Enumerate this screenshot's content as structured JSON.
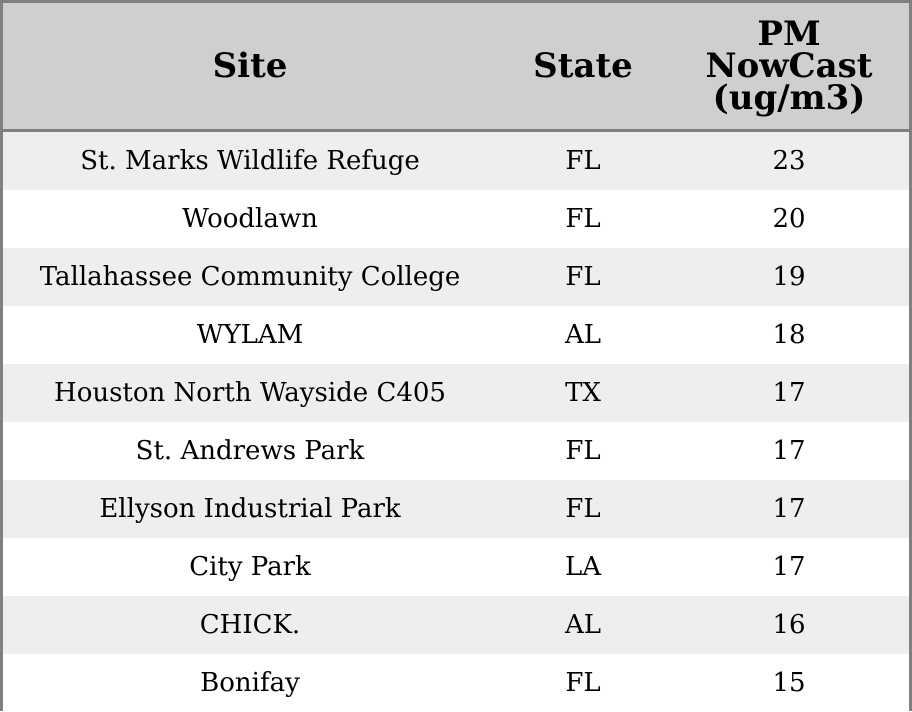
{
  "chart_data": {
    "type": "table",
    "columns": [
      "Site",
      "State",
      "PM\nNowCast\n(ug/m3)"
    ],
    "rows": [
      {
        "site": "St. Marks Wildlife Refuge",
        "state": "FL",
        "pm": "23"
      },
      {
        "site": "Woodlawn",
        "state": "FL",
        "pm": "20"
      },
      {
        "site": "Tallahassee Community College",
        "state": "FL",
        "pm": "19"
      },
      {
        "site": "WYLAM",
        "state": "AL",
        "pm": "18"
      },
      {
        "site": "Houston North Wayside C405",
        "state": "TX",
        "pm": "17"
      },
      {
        "site": "St. Andrews Park",
        "state": "FL",
        "pm": "17"
      },
      {
        "site": "Ellyson Industrial Park",
        "state": "FL",
        "pm": "17"
      },
      {
        "site": "City Park",
        "state": "LA",
        "pm": "17"
      },
      {
        "site": "CHICK.",
        "state": "AL",
        "pm": "16"
      },
      {
        "site": "Bonifay",
        "state": "FL",
        "pm": "15"
      }
    ]
  },
  "colors": {
    "header_bg": "#cfcfcf",
    "row_alt_bg": "#eeeeee",
    "row_bg": "#ffffff",
    "border": "#808080"
  }
}
